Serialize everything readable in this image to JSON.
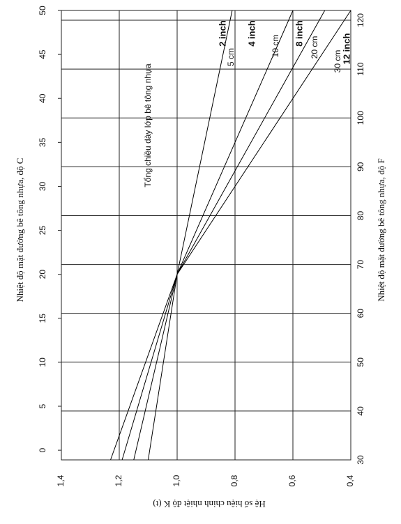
{
  "chart_data": {
    "type": "line",
    "orientation": "rotated",
    "x_label": "Nhiệt độ mặt đường bê tông nhựa, độ C",
    "x2_label": "Nhiệt độ mặt đường bê tông nhựa, độ F",
    "y_label": "Hệ số hiệu chỉnh nhiệt độ K (t)",
    "annotation": "Tổng chiều dày lớp bê tông nhựa",
    "x": [
      -1.1,
      20,
      50
    ],
    "xlim": [
      -1.1,
      50
    ],
    "xticks": [
      0,
      5,
      10,
      15,
      20,
      25,
      30,
      35,
      40,
      45,
      50
    ],
    "x2lim": [
      30,
      122
    ],
    "x2ticks": [
      30,
      40,
      50,
      60,
      70,
      80,
      90,
      100,
      110,
      120
    ],
    "ylim": [
      1.4,
      0.4
    ],
    "yticks": [
      {
        "value": 1.4,
        "label": "1,4"
      },
      {
        "value": 1.2,
        "label": "1,2"
      },
      {
        "value": 1.0,
        "label": "1,0"
      },
      {
        "value": 0.8,
        "label": "0,8"
      },
      {
        "value": 0.6,
        "label": "0,6"
      },
      {
        "value": 0.4,
        "label": "0,4"
      }
    ],
    "grid": true,
    "series": [
      {
        "name": "2 inch",
        "metric_name": "5 cm",
        "color": "#000000",
        "values": [
          1.1,
          1.0,
          0.81
        ]
      },
      {
        "name": "4 inch",
        "metric_name": "10 cm",
        "color": "#000000",
        "values": [
          1.15,
          1.0,
          0.6
        ]
      },
      {
        "name": "8 inch",
        "metric_name": "20 cm",
        "color": "#000000",
        "values": [
          1.19,
          1.0,
          0.49
        ]
      },
      {
        "name": "12 inch",
        "metric_name": "30 cm",
        "color": "#000000",
        "values": [
          1.23,
          1.0,
          0.4
        ]
      }
    ]
  }
}
